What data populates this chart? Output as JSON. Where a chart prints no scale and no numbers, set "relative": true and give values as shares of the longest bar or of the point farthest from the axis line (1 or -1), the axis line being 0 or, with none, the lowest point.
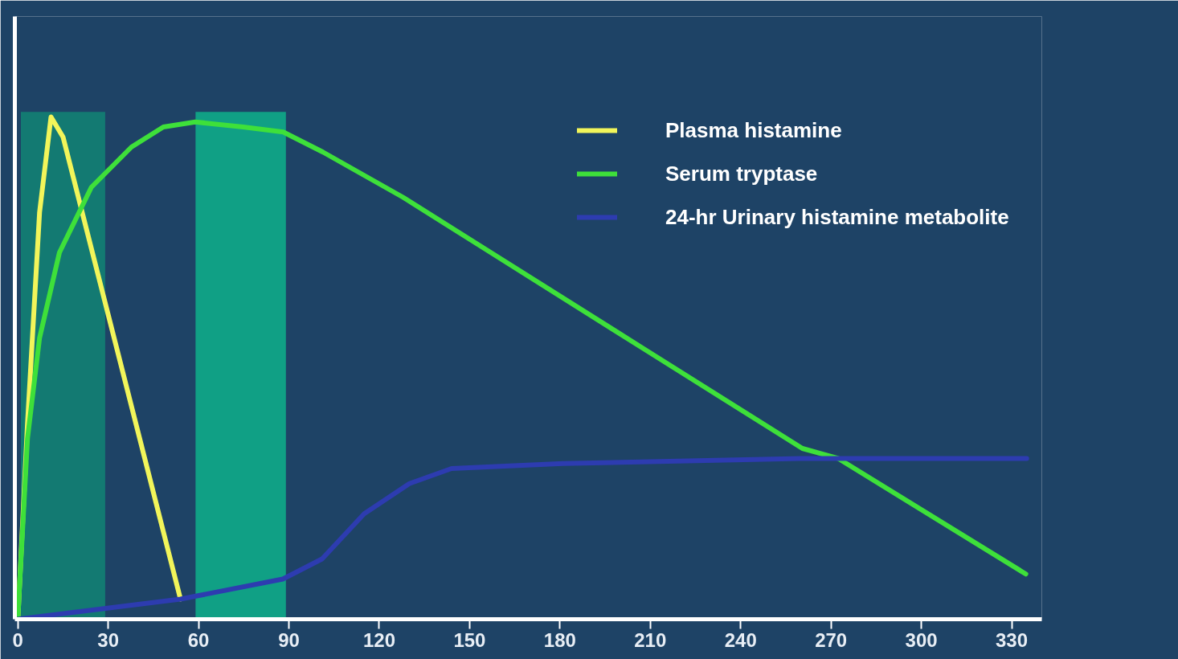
{
  "chart_data": {
    "type": "line",
    "relative": true,
    "xlim": [
      -1,
      340
    ],
    "xticks": [
      0,
      30,
      60,
      90,
      120,
      150,
      180,
      210,
      240,
      270,
      300,
      330
    ],
    "series": [
      {
        "name": "Plasma histamine",
        "color": "#f2f55a",
        "x": [
          0,
          3.2,
          7.2,
          11,
          15,
          54
        ],
        "values": [
          0,
          0.39,
          0.81,
          1.0,
          0.96,
          0.04
        ]
      },
      {
        "name": "Serum tryptase",
        "color": "#3ee03a",
        "x": [
          0,
          0.5,
          3.2,
          7.2,
          13.8,
          24.4,
          37.7,
          48.3,
          58.9,
          74.8,
          88.1,
          101.3,
          127.9,
          154.4,
          207.4,
          260.5,
          272.4,
          334.7
        ],
        "values": [
          0,
          0.06,
          0.36,
          0.56,
          0.73,
          0.86,
          0.94,
          0.98,
          0.99,
          0.98,
          0.97,
          0.93,
          0.84,
          0.74,
          0.54,
          0.34,
          0.32,
          0.09
        ]
      },
      {
        "name": "24-hr Urinary histamine metabolite",
        "color": "#2d3cb0",
        "x": [
          0,
          54,
          88,
          101,
          115,
          130,
          144,
          181,
          260,
          335
        ],
        "values": [
          0,
          0.04,
          0.08,
          0.12,
          0.21,
          0.27,
          0.3,
          0.31,
          0.32,
          0.32
        ]
      }
    ],
    "bands": [
      {
        "axis": "x",
        "from": 1,
        "to": 29,
        "color": "#137a72"
      },
      {
        "axis": "x",
        "from": 59,
        "to": 89,
        "color": "#10a085"
      }
    ],
    "grid": false,
    "legend": "top right",
    "line_style": "solid",
    "marker": "none"
  }
}
